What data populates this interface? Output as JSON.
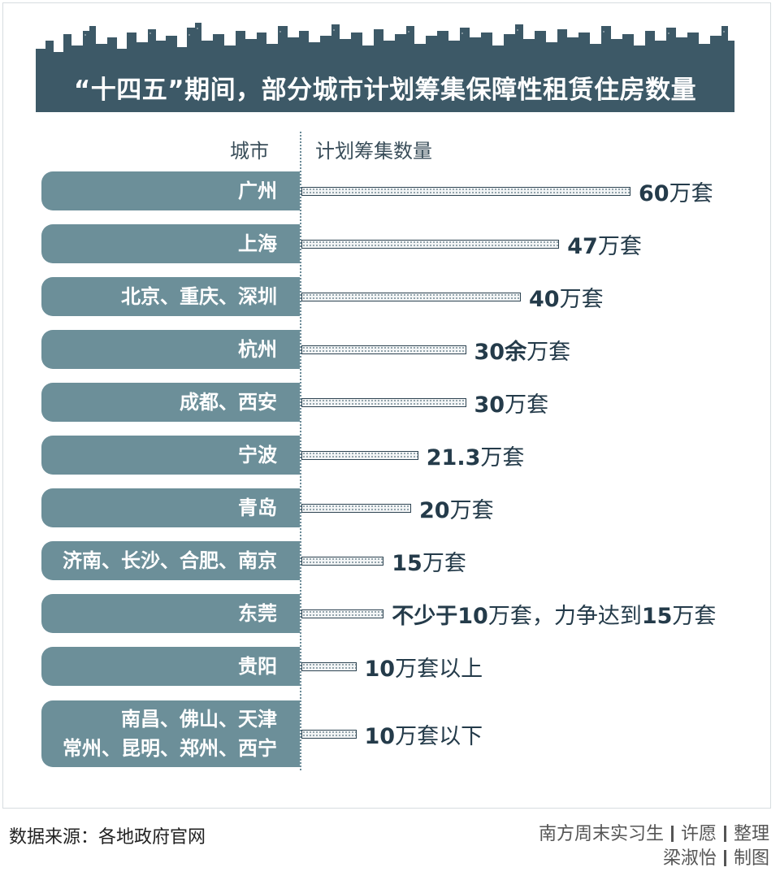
{
  "title": "“十四五”期间，部分城市计划筹集保障性租赁住房数量",
  "headers": {
    "city": "城市",
    "count": "计划筹集数量"
  },
  "chart_data": {
    "type": "bar",
    "orientation": "horizontal",
    "xlim": [
      0,
      60
    ],
    "categories": [
      "广州",
      "上海",
      "北京、重庆、深圳",
      "杭州",
      "成都、西安",
      "宁波",
      "青岛",
      "济南、长沙、合肥、南京",
      "东莞",
      "贵阳",
      "南昌、佛山、天津\n常州、昆明、郑州、西宁"
    ],
    "values": [
      60,
      47,
      40,
      30,
      30,
      21.3,
      20,
      15,
      15,
      10,
      10
    ],
    "unit": "万套",
    "data_labels": [
      {
        "num": "60",
        "text": "万套"
      },
      {
        "num": "47",
        "text": "万套"
      },
      {
        "num": "40",
        "text": "万套"
      },
      {
        "num": "30余",
        "text": "万套"
      },
      {
        "num": "30",
        "text": "万套"
      },
      {
        "num": "21.3",
        "text": "万套"
      },
      {
        "num": "20",
        "text": "万套"
      },
      {
        "num": "15",
        "text": "万套"
      },
      {
        "num": "不少于10",
        "text": "万套，力争达到",
        "num2": "15",
        "text2": "万套"
      },
      {
        "num": "10",
        "text": "万套以上"
      },
      {
        "num": "10",
        "text": "万套以下"
      }
    ]
  },
  "footer": {
    "source": "数据来源：各地政府官网",
    "credit_line1": [
      "南方周末实习生",
      "许愿",
      "整理"
    ],
    "credit_line2": [
      "梁淑怡",
      "制图"
    ]
  },
  "colors": {
    "banner": "#3d5967",
    "skyline": "#3d5967",
    "pill": "#6c8f99",
    "text": "#243b4a"
  }
}
